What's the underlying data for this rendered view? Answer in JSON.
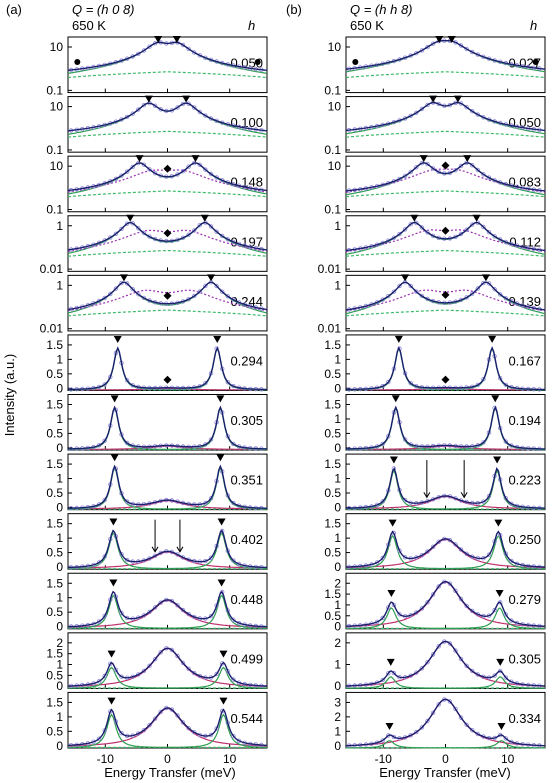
{
  "figure": {
    "ylabel": "Intensity (a.u.)",
    "xlabel": "Energy Transfer (meV)"
  },
  "chart_data": [
    {
      "type": "line",
      "panel_label": "(a)",
      "title": "Q = (h 0 8)",
      "temperature": "650 K",
      "param_label": "h",
      "xlim": [
        -16,
        16
      ],
      "xticks": [
        -10,
        0,
        10
      ],
      "xtick_labels": [
        "-10",
        "0",
        "10"
      ],
      "xlabel": "Energy Transfer (meV)",
      "ylabel": "Intensity (a.u.)",
      "series_colors": {
        "data": "#8f86d8",
        "total_fit": "#1a1f6e",
        "phonon": "#2e9e52",
        "background": "#3cba6a",
        "central": "#c0306e",
        "purple_mode": "#9a2fb0",
        "orange_guide": "#e09020"
      },
      "subplots": [
        {
          "h": "0.050",
          "scale": "log",
          "ytick_labels": [
            "10",
            "0.1"
          ],
          "peaks": [
            -1.5,
            1.5
          ],
          "width": 1.6,
          "amp": 20,
          "markers": [
            "black-triangle",
            "black-circle"
          ],
          "dot_positions": [
            -14.5,
            14.5
          ]
        },
        {
          "h": "0.100",
          "scale": "log",
          "ytick_labels": [
            "10",
            "0.1"
          ],
          "peaks": [
            -3,
            3
          ],
          "width": 1.4,
          "amp": 12,
          "markers": [
            "black-triangle"
          ]
        },
        {
          "h": "0.148",
          "scale": "log",
          "ytick_labels": [
            "10",
            "0.1"
          ],
          "peaks": [
            -4.5,
            4.5
          ],
          "width": 1.3,
          "amp": 4,
          "markers": [
            "black-triangle",
            "black-diamond"
          ]
        },
        {
          "h": "0.197",
          "scale": "log",
          "ytick_labels": [
            "1",
            "0.01"
          ],
          "peaks": [
            -6,
            6
          ],
          "width": 1.2,
          "amp": 0.9,
          "markers": [
            "black-triangle",
            "black-diamond"
          ]
        },
        {
          "h": "0.244",
          "scale": "log",
          "ytick_labels": [
            "1",
            "0.01"
          ],
          "peaks": [
            -7,
            7
          ],
          "width": 1.1,
          "amp": 0.9,
          "markers": [
            "black-triangle",
            "black-diamond"
          ]
        },
        {
          "h": "0.294",
          "scale": "linear",
          "ylim": [
            0,
            2.0
          ],
          "ytick_labels": [
            "1.5",
            "1",
            "0.5",
            "0"
          ],
          "peaks": [
            -8,
            8
          ],
          "width": 0.8,
          "amp": 1.5,
          "central_amp": 0.05,
          "markers": [
            "black-triangle",
            "black-diamond"
          ]
        },
        {
          "h": "0.305",
          "scale": "linear",
          "ylim": [
            0,
            2.0
          ],
          "ytick_labels": [
            "1.5",
            "1",
            "0.5",
            "0"
          ],
          "peaks": [
            -8.5,
            8.5
          ],
          "width": 0.8,
          "amp": 1.5,
          "central_amp": 0.12,
          "markers": [
            "black-triangle"
          ]
        },
        {
          "h": "0.351",
          "scale": "linear",
          "ylim": [
            0,
            2.0
          ],
          "ytick_labels": [
            "1.5",
            "1",
            "0.5",
            "0"
          ],
          "peaks": [
            -8.5,
            8.5
          ],
          "width": 0.8,
          "amp": 1.5,
          "central_amp": 0.3,
          "markers": [
            "black-triangle"
          ]
        },
        {
          "h": "0.402",
          "scale": "linear",
          "ylim": [
            0,
            2.0
          ],
          "ytick_labels": [
            "1.5",
            "1",
            "0.5",
            "0"
          ],
          "peaks": [
            -8.7,
            8.7
          ],
          "width": 0.9,
          "amp": 1.3,
          "central_amp": 0.6,
          "markers": [
            "black-triangle",
            "arrow-down"
          ],
          "arrow_positions": [
            -2,
            2
          ]
        },
        {
          "h": "0.448",
          "scale": "linear",
          "ylim": [
            0,
            2.0
          ],
          "ytick_labels": [
            "1.5",
            "1",
            "0.5",
            "0"
          ],
          "peaks": [
            -8.7,
            8.7
          ],
          "width": 0.9,
          "amp": 1.2,
          "central_amp": 1.0,
          "markers": [
            "black-triangle"
          ]
        },
        {
          "h": "0.499",
          "scale": "linear",
          "ylim": [
            0,
            2.4
          ],
          "ytick_labels": [
            "2",
            "1.5",
            "1",
            "0.5",
            "0"
          ],
          "peaks": [
            -9,
            9
          ],
          "width": 0.9,
          "amp": 0.9,
          "central_amp": 1.7,
          "markers": [
            "black-triangle"
          ]
        },
        {
          "h": "0.544",
          "scale": "linear",
          "ylim": [
            0,
            2.0
          ],
          "ytick_labels": [
            "1.5",
            "1",
            "0.5",
            "0"
          ],
          "peaks": [
            -9,
            9
          ],
          "width": 0.9,
          "amp": 1.2,
          "central_amp": 1.4,
          "markers": [
            "black-triangle"
          ]
        }
      ]
    },
    {
      "type": "line",
      "panel_label": "(b)",
      "title": "Q = (h h 8)",
      "temperature": "650 K",
      "param_label": "h",
      "xlim": [
        -16,
        16
      ],
      "xticks": [
        -10,
        0,
        10
      ],
      "xtick_labels": [
        "-10",
        "0",
        "10"
      ],
      "xlabel": "Energy Transfer (meV)",
      "series_colors": {
        "data": "#8f86d8",
        "total_fit": "#1a1f6e",
        "phonon": "#2e9e52",
        "background": "#3cba6a",
        "central": "#c0306e",
        "purple_mode": "#9a2fb0",
        "orange_guide": "#e09020"
      },
      "subplots": [
        {
          "h": "0.027",
          "scale": "log",
          "ytick_labels": [
            "10",
            "0.1"
          ],
          "peaks": [
            -1,
            1
          ],
          "width": 1.8,
          "amp": 20,
          "markers": [
            "black-triangle",
            "black-circle"
          ],
          "dot_positions": [
            -14.5,
            14.5
          ]
        },
        {
          "h": "0.050",
          "scale": "log",
          "ytick_labels": [
            "10",
            "0.1"
          ],
          "peaks": [
            -2,
            2
          ],
          "width": 1.5,
          "amp": 12,
          "markers": [
            "black-triangle"
          ]
        },
        {
          "h": "0.083",
          "scale": "log",
          "ytick_labels": [
            "10",
            "0.1"
          ],
          "peaks": [
            -3.5,
            3.5
          ],
          "width": 1.3,
          "amp": 4,
          "markers": [
            "black-triangle",
            "black-diamond"
          ]
        },
        {
          "h": "0.112",
          "scale": "log",
          "ytick_labels": [
            "1",
            "0.01"
          ],
          "peaks": [
            -5,
            5
          ],
          "width": 1.2,
          "amp": 0.9,
          "markers": [
            "black-triangle",
            "black-diamond"
          ]
        },
        {
          "h": "0.139",
          "scale": "log",
          "ytick_labels": [
            "1",
            "0.01"
          ],
          "peaks": [
            -6.5,
            6.5
          ],
          "width": 1.1,
          "amp": 0.9,
          "markers": [
            "black-triangle",
            "black-diamond"
          ]
        },
        {
          "h": "0.167",
          "scale": "linear",
          "ylim": [
            0,
            2.0
          ],
          "ytick_labels": [
            "1.5",
            "1",
            "0.5",
            "0"
          ],
          "peaks": [
            -7.5,
            7.5
          ],
          "width": 0.8,
          "amp": 1.5,
          "central_amp": 0.05,
          "markers": [
            "black-triangle",
            "black-diamond"
          ]
        },
        {
          "h": "0.194",
          "scale": "linear",
          "ylim": [
            0,
            2.0
          ],
          "ytick_labels": [
            "1.5",
            "1",
            "0.5",
            "0"
          ],
          "peaks": [
            -8,
            8
          ],
          "width": 0.8,
          "amp": 1.5,
          "central_amp": 0.12,
          "markers": [
            "black-triangle"
          ]
        },
        {
          "h": "0.223",
          "scale": "linear",
          "ylim": [
            0,
            2.0
          ],
          "ytick_labels": [
            "1.5",
            "1",
            "0.5",
            "0"
          ],
          "peaks": [
            -8.3,
            8.3
          ],
          "width": 0.8,
          "amp": 1.4,
          "central_amp": 0.45,
          "markers": [
            "black-triangle",
            "arrow-down"
          ],
          "arrow_positions": [
            -3,
            3
          ]
        },
        {
          "h": "0.250",
          "scale": "linear",
          "ylim": [
            0,
            2.0
          ],
          "ytick_labels": [
            "1.5",
            "1",
            "0.5",
            "0"
          ],
          "peaks": [
            -8.5,
            8.5
          ],
          "width": 0.9,
          "amp": 1.2,
          "central_amp": 1.05,
          "markers": [
            "black-triangle"
          ]
        },
        {
          "h": "0.279",
          "scale": "linear",
          "ylim": [
            0,
            2.4
          ],
          "ytick_labels": [
            "2",
            "1.5",
            "1",
            "0.5",
            "0"
          ],
          "peaks": [
            -8.7,
            8.7
          ],
          "width": 0.9,
          "amp": 0.9,
          "central_amp": 2.0,
          "markers": [
            "black-triangle"
          ]
        },
        {
          "h": "0.305",
          "scale": "linear",
          "ylim": [
            0,
            2.4
          ],
          "ytick_labels": [
            "2",
            "1",
            "0"
          ],
          "peaks": [
            -8.8,
            8.8
          ],
          "width": 0.9,
          "amp": 0.5,
          "central_amp": 2.0,
          "markers": [
            "black-triangle"
          ]
        },
        {
          "h": "0.334",
          "scale": "linear",
          "ylim": [
            0,
            3.8
          ],
          "ytick_labels": [
            "3",
            "2",
            "1",
            "0"
          ],
          "peaks": [
            -9,
            9
          ],
          "width": 0.9,
          "amp": 0.5,
          "central_amp": 3.3,
          "markers": [
            "black-triangle"
          ]
        }
      ]
    }
  ]
}
